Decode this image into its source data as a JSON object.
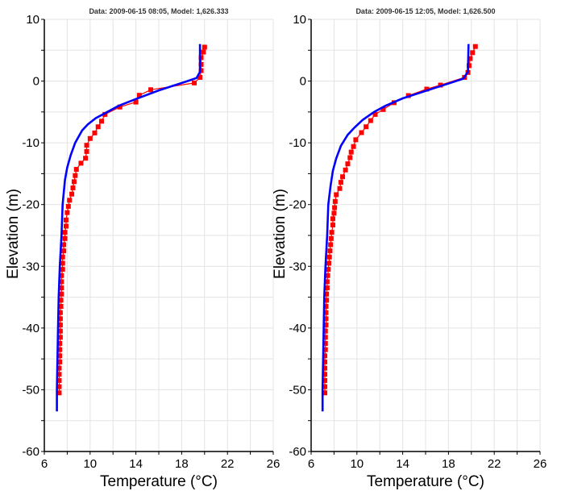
{
  "chart_data": [
    {
      "type": "line",
      "title": "Data: 2009-06-15 08:05, Model: 1,626.333",
      "xlabel": "Temperature (°C)",
      "ylabel": "Elevation (m)",
      "xlim": [
        6,
        26
      ],
      "ylim": [
        -60,
        10
      ],
      "xticks": [
        "6",
        "10",
        "14",
        "18",
        "22",
        "26"
      ],
      "yticks": [
        "10",
        "0",
        "-10",
        "-20",
        "-30",
        "-40",
        "-50",
        "-60"
      ],
      "grid": true,
      "series": [
        {
          "role": "model",
          "color": "#0000ff",
          "marker": "none",
          "points": [
            [
              19.6,
              6
            ],
            [
              19.6,
              1.5
            ],
            [
              19.3,
              0.5
            ],
            [
              18.5,
              0
            ],
            [
              16,
              -1.5
            ],
            [
              14,
              -2.9
            ],
            [
              12.5,
              -4
            ],
            [
              11.2,
              -5.3
            ],
            [
              10.5,
              -6
            ],
            [
              9.8,
              -7
            ],
            [
              9.3,
              -8
            ],
            [
              8.7,
              -10
            ],
            [
              8.3,
              -12
            ],
            [
              8.0,
              -14
            ],
            [
              7.8,
              -16
            ],
            [
              7.6,
              -20
            ],
            [
              7.5,
              -25
            ],
            [
              7.35,
              -30
            ],
            [
              7.25,
              -35
            ],
            [
              7.2,
              -40
            ],
            [
              7.15,
              -45
            ],
            [
              7.1,
              -50
            ],
            [
              7.1,
              -53.5
            ]
          ]
        },
        {
          "role": "data",
          "color": "#ff0000",
          "marker": "square",
          "points": [
            [
              20.0,
              5.5
            ],
            [
              19.9,
              4.7
            ],
            [
              19.7,
              3.8
            ],
            [
              19.7,
              2.7
            ],
            [
              19.7,
              1.7
            ],
            [
              19.6,
              0.6
            ],
            [
              19.1,
              -0.3
            ],
            [
              15.3,
              -1.4
            ],
            [
              14.3,
              -2.3
            ],
            [
              14.0,
              -3.4
            ],
            [
              12.6,
              -4.2
            ],
            [
              11.3,
              -5.4
            ],
            [
              11.0,
              -6.5
            ],
            [
              10.7,
              -7.4
            ],
            [
              10.4,
              -8.4
            ],
            [
              10.0,
              -9.3
            ],
            [
              9.7,
              -10.4
            ],
            [
              9.7,
              -11.4
            ],
            [
              9.6,
              -12.5
            ],
            [
              9.2,
              -13.3
            ],
            [
              8.8,
              -14.3
            ],
            [
              8.7,
              -15.3
            ],
            [
              8.6,
              -16.3
            ],
            [
              8.5,
              -17.3
            ],
            [
              8.4,
              -18.3
            ],
            [
              8.2,
              -19.3
            ],
            [
              8.1,
              -20.3
            ],
            [
              8.0,
              -21.3
            ],
            [
              7.9,
              -22.5
            ],
            [
              7.9,
              -23.5
            ],
            [
              7.8,
              -24.5
            ],
            [
              7.8,
              -25.5
            ],
            [
              7.7,
              -26.5
            ],
            [
              7.7,
              -27.5
            ],
            [
              7.6,
              -28.5
            ],
            [
              7.6,
              -29.5
            ],
            [
              7.6,
              -30.5
            ],
            [
              7.5,
              -31.5
            ],
            [
              7.5,
              -32.5
            ],
            [
              7.5,
              -33.5
            ],
            [
              7.5,
              -34.5
            ],
            [
              7.45,
              -35.5
            ],
            [
              7.45,
              -36.5
            ],
            [
              7.4,
              -37.5
            ],
            [
              7.4,
              -38.5
            ],
            [
              7.4,
              -39.5
            ],
            [
              7.4,
              -40.5
            ],
            [
              7.4,
              -41.5
            ],
            [
              7.35,
              -42.5
            ],
            [
              7.35,
              -43.5
            ],
            [
              7.35,
              -44.5
            ],
            [
              7.35,
              -45.5
            ],
            [
              7.3,
              -46.5
            ],
            [
              7.3,
              -47.5
            ],
            [
              7.3,
              -48.5
            ],
            [
              7.3,
              -49.5
            ],
            [
              7.3,
              -50.5
            ]
          ]
        }
      ]
    },
    {
      "type": "line",
      "title": "Data: 2009-06-15 12:05, Model: 1,626.500",
      "xlabel": "Temperature (°C)",
      "ylabel": "Elevation (m)",
      "xlim": [
        6,
        26
      ],
      "ylim": [
        -60,
        10
      ],
      "xticks": [
        "6",
        "10",
        "14",
        "18",
        "22",
        "26"
      ],
      "yticks": [
        "10",
        "0",
        "-10",
        "-20",
        "-30",
        "-40",
        "-50",
        "-60"
      ],
      "grid": true,
      "series": [
        {
          "role": "model",
          "color": "#0000ff",
          "marker": "none",
          "points": [
            [
              19.75,
              6
            ],
            [
              19.7,
              1.5
            ],
            [
              19.3,
              0.4
            ],
            [
              18.5,
              -0.1
            ],
            [
              16,
              -1.6
            ],
            [
              14,
              -2.8
            ],
            [
              12.5,
              -4
            ],
            [
              11.5,
              -5
            ],
            [
              10.5,
              -6.3
            ],
            [
              9.8,
              -7.5
            ],
            [
              9.2,
              -8.7
            ],
            [
              8.6,
              -10.5
            ],
            [
              8.2,
              -12.5
            ],
            [
              7.9,
              -14.5
            ],
            [
              7.7,
              -17
            ],
            [
              7.5,
              -20
            ],
            [
              7.4,
              -25
            ],
            [
              7.25,
              -30
            ],
            [
              7.15,
              -35
            ],
            [
              7.1,
              -40
            ],
            [
              7.05,
              -45
            ],
            [
              7.0,
              -50
            ],
            [
              7.0,
              -53.5
            ]
          ]
        },
        {
          "role": "data",
          "color": "#ff0000",
          "marker": "square",
          "points": [
            [
              20.35,
              5.6
            ],
            [
              20.1,
              4.6
            ],
            [
              19.9,
              3.65
            ],
            [
              19.8,
              2.5
            ],
            [
              19.7,
              1.4
            ],
            [
              19.4,
              0.6
            ],
            [
              17.3,
              -0.65
            ],
            [
              16.1,
              -1.3
            ],
            [
              14.5,
              -2.35
            ],
            [
              13.25,
              -3.5
            ],
            [
              12.3,
              -4.6
            ],
            [
              11.6,
              -5.4
            ],
            [
              11.2,
              -6.4
            ],
            [
              10.8,
              -7.4
            ],
            [
              10.4,
              -8.35
            ],
            [
              9.9,
              -9.5
            ],
            [
              9.7,
              -10.6
            ],
            [
              9.5,
              -11.5
            ],
            [
              9.4,
              -12.4
            ],
            [
              9.2,
              -13.4
            ],
            [
              9.0,
              -14.4
            ],
            [
              8.75,
              -15.5
            ],
            [
              8.6,
              -16.4
            ],
            [
              8.5,
              -17.4
            ],
            [
              8.2,
              -18.4
            ],
            [
              8.1,
              -19.5
            ],
            [
              8.05,
              -20.5
            ],
            [
              8.0,
              -21.4
            ],
            [
              7.9,
              -22.3
            ],
            [
              7.9,
              -23.3
            ],
            [
              7.8,
              -24.5
            ],
            [
              7.75,
              -25.5
            ],
            [
              7.7,
              -26.5
            ],
            [
              7.65,
              -27.5
            ],
            [
              7.6,
              -28.5
            ],
            [
              7.55,
              -29.5
            ],
            [
              7.5,
              -30.5
            ],
            [
              7.45,
              -31.5
            ],
            [
              7.4,
              -32.5
            ],
            [
              7.4,
              -33.5
            ],
            [
              7.35,
              -34.5
            ],
            [
              7.35,
              -35.5
            ],
            [
              7.3,
              -36.5
            ],
            [
              7.3,
              -37.5
            ],
            [
              7.3,
              -38.5
            ],
            [
              7.3,
              -39.5
            ],
            [
              7.25,
              -40.5
            ],
            [
              7.25,
              -41.5
            ],
            [
              7.25,
              -42.5
            ],
            [
              7.25,
              -43.5
            ],
            [
              7.2,
              -44.5
            ],
            [
              7.2,
              -45.5
            ],
            [
              7.2,
              -46.5
            ],
            [
              7.2,
              -47.5
            ],
            [
              7.2,
              -48.5
            ],
            [
              7.2,
              -49.5
            ],
            [
              7.2,
              -50.5
            ]
          ]
        }
      ]
    }
  ]
}
